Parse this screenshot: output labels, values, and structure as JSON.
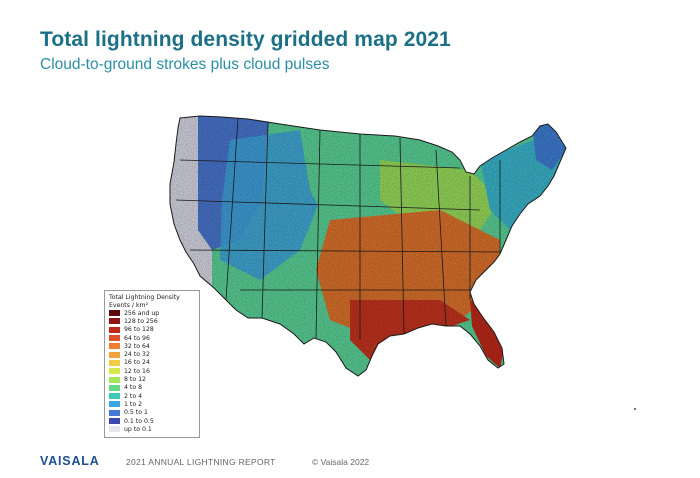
{
  "header": {
    "title": "Total lightning density gridded map 2021",
    "subtitle": "Cloud-to-ground strokes plus cloud pulses"
  },
  "map": {
    "region": "Contiguous United States",
    "fill_colors": {
      "west_coast": "#dcdceb",
      "northwest": "#4a78d2",
      "mountain": "#3fa6e0",
      "plains": "#5cd69a",
      "midwest": "#9be05c",
      "south_central": "#e0742c",
      "gulf": "#c8341e",
      "florida": "#c02a1a",
      "northeast": "#3cb8d0",
      "maine": "#3f7fd8"
    }
  },
  "legend": {
    "title_line1": "Total Lightning Density",
    "title_line2": "Events / km²",
    "items": [
      {
        "label": "256 and up",
        "color": "#5a0a0a"
      },
      {
        "label": "128 to 256",
        "color": "#8e1414"
      },
      {
        "label": "96 to 128",
        "color": "#c0281a"
      },
      {
        "label": "64 to 96",
        "color": "#e0502a"
      },
      {
        "label": "32 to 64",
        "color": "#f07c30"
      },
      {
        "label": "24 to 32",
        "color": "#f4a23a"
      },
      {
        "label": "16 to 24",
        "color": "#f2cc42"
      },
      {
        "label": "12 to 16",
        "color": "#d8e84a"
      },
      {
        "label": "8 to 12",
        "color": "#a6e65a"
      },
      {
        "label": "4 to 8",
        "color": "#62da86"
      },
      {
        "label": "2 to 4",
        "color": "#3ec8b8"
      },
      {
        "label": "1 to 2",
        "color": "#3aa6e2"
      },
      {
        "label": "0.5 to 1",
        "color": "#4478d8"
      },
      {
        "label": "0.1 to 0.5",
        "color": "#3a48b0"
      },
      {
        "label": "up to 0.1",
        "color": "#e6e6ee"
      }
    ]
  },
  "footer": {
    "logo": "VAISALA",
    "report": "2021 ANNUAL LIGHTNING REPORT",
    "copyright": "© Vaisala 2022"
  }
}
